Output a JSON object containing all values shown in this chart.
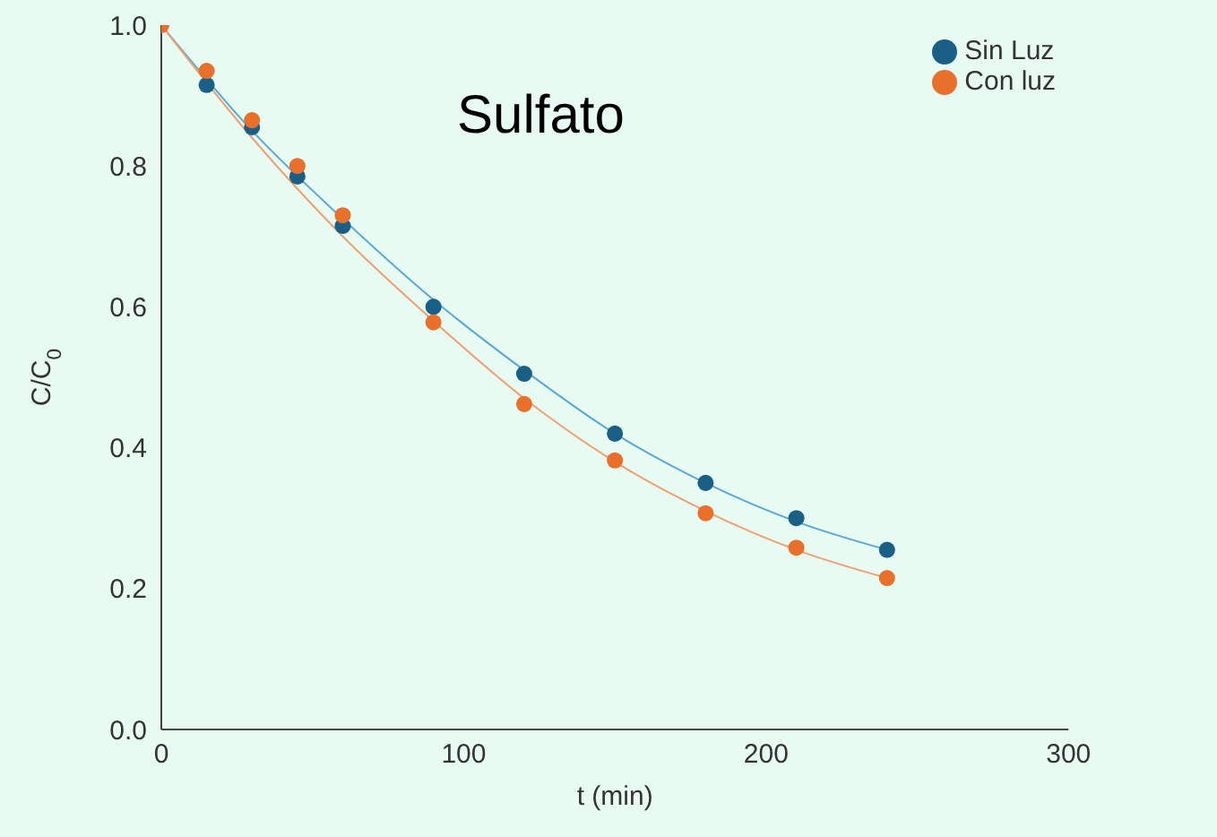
{
  "chart_data": {
    "type": "scatter",
    "title": "Sulfato",
    "xlabel": "t (min)",
    "ylabel": "C/C$_{0}$",
    "xlim": [
      0,
      300
    ],
    "xticks": [
      0,
      100,
      200,
      300
    ],
    "ylim": [
      0,
      1.0
    ],
    "yticks": [
      {
        "value": 0,
        "label": "0.0"
      },
      0.2,
      0.4,
      0.6,
      0.8,
      {
        "value": 1.0,
        "label": "1.0"
      }
    ],
    "grid": false,
    "legend": "top right",
    "marker": "circle",
    "x": [
      0,
      15,
      30,
      45,
      60,
      90,
      120,
      150,
      180,
      210,
      240
    ],
    "series": [
      {
        "name": "Sin Luz",
        "color": "#1a5f86",
        "values": [
          null,
          0.915,
          0.855,
          0.785,
          0.715,
          0.6,
          0.505,
          0.42,
          0.35,
          0.3,
          0.255
        ]
      },
      {
        "name": "Con luz",
        "color": "#e8702a",
        "values": [
          1.0,
          0.935,
          0.865,
          0.8,
          0.73,
          0.578,
          0.462,
          0.382,
          0.307,
          0.258,
          0.215
        ]
      },
      {
        "type": "line",
        "color": "#5aa8d6",
        "marker": "none",
        "x": [
          0,
          30,
          60,
          90,
          120,
          150,
          180,
          210,
          240
        ],
        "values": [
          1.0,
          0.85,
          0.725,
          0.61,
          0.51,
          0.42,
          0.35,
          0.295,
          0.255
        ]
      },
      {
        "type": "line",
        "color": "#f0a070",
        "marker": "none",
        "x": [
          0,
          30,
          60,
          90,
          120,
          150,
          180,
          210,
          240
        ],
        "values": [
          1.0,
          0.84,
          0.7,
          0.58,
          0.47,
          0.38,
          0.31,
          0.255,
          0.215
        ]
      }
    ]
  }
}
